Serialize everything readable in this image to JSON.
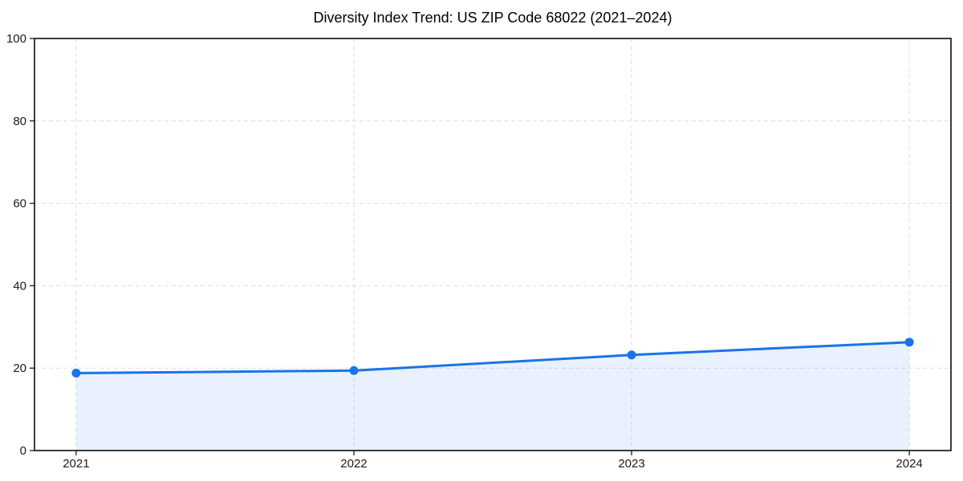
{
  "figure": {
    "background": "#ffffff"
  },
  "chart_data": {
    "type": "area",
    "title": "Diversity Index Trend: US ZIP Code 68022 (2021–2024)",
    "x": [
      2021,
      2022,
      2023,
      2024
    ],
    "x_tick_labels": [
      "2021",
      "2022",
      "2023",
      "2024"
    ],
    "series": [
      {
        "name": "Diversity Index",
        "values": [
          18.8,
          19.4,
          23.2,
          26.3
        ]
      }
    ],
    "xlabel": "",
    "ylabel": "",
    "ylim": [
      0,
      100
    ],
    "y_ticks": [
      0,
      20,
      40,
      60,
      80,
      100
    ],
    "x_margin_fraction": 0.05,
    "grid": true,
    "grid_style": "dashed",
    "legend_position": "none",
    "marker": "circle",
    "colors": {
      "line": "#1a73e8",
      "marker": "#1a73e8",
      "fill": "#1a73e8",
      "fill_opacity": 0.1,
      "grid": "#dddddd",
      "frame": "#1a1a1a",
      "tick": "#1a1a1a",
      "text": "#1a1a1a"
    }
  }
}
